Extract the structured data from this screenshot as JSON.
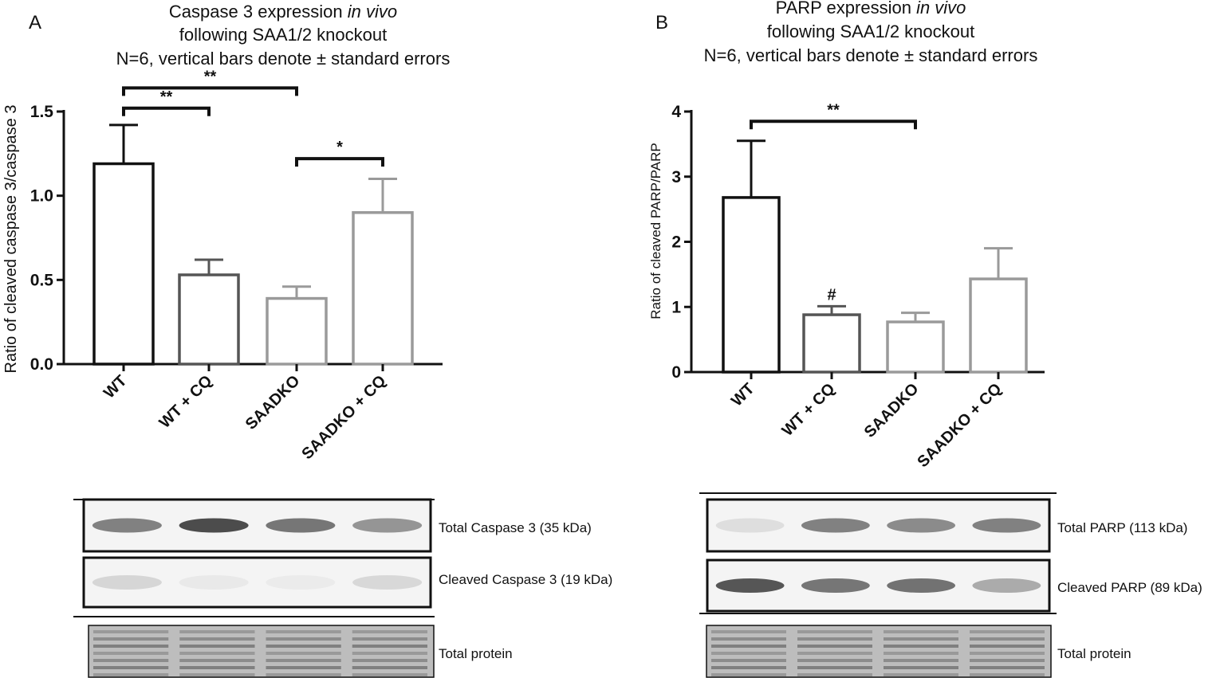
{
  "chart_data": [
    {
      "type": "bar",
      "panel_label": "A",
      "title_lines": [
        {
          "text": "Caspase 3 expression ",
          "italic": "in vivo"
        },
        {
          "text": "following SAA1/2 knockout",
          "italic": ""
        },
        {
          "text": "N=6, vertical bars denote ± standard errors",
          "italic": ""
        }
      ],
      "ylabel": "Ratio of cleaved caspase 3/caspase 3",
      "xlabel": "",
      "ylim": [
        0,
        1.5
      ],
      "yticks": [
        0.0,
        0.5,
        1.0,
        1.5
      ],
      "ytick_labels": [
        "0.0",
        "0.5",
        "1.0",
        "1.5"
      ],
      "categories": [
        "WT",
        "WT + CQ",
        "SAADKO",
        "SAADKO + CQ"
      ],
      "values": [
        1.19,
        0.53,
        0.39,
        0.9
      ],
      "errors": [
        0.23,
        0.09,
        0.07,
        0.2
      ],
      "bar_colors": [
        "#111111",
        "#555555",
        "#9a9a9a",
        "#9a9a9a"
      ],
      "annotations": [
        {
          "from": 0,
          "to": 1,
          "text": "**",
          "level": 1.52
        },
        {
          "from": 0,
          "to": 2,
          "text": "**",
          "level": 1.64
        },
        {
          "from": 2,
          "to": 3,
          "text": "*",
          "level": 1.22
        }
      ],
      "bar_annotations": [],
      "blot_labels": [
        "Total Caspase 3 (35 kDa)",
        "Cleaved Caspase 3 (19 kDa)",
        "Total protein"
      ],
      "blot_intensity": [
        [
          0.55,
          0.8,
          0.6,
          0.45
        ],
        [
          0.14,
          0.05,
          0.04,
          0.13
        ]
      ]
    },
    {
      "type": "bar",
      "panel_label": "B",
      "title_lines": [
        {
          "text": "PARP expression ",
          "italic": "in vivo"
        },
        {
          "text": "following SAA1/2 knockout",
          "italic": ""
        },
        {
          "text": "N=6, vertical bars denote ± standard errors",
          "italic": ""
        }
      ],
      "ylabel": "Ratio of cleaved PARP/PARP",
      "xlabel": "",
      "ylim": [
        0,
        4
      ],
      "yticks": [
        0,
        1,
        2,
        3,
        4
      ],
      "ytick_labels": [
        "0",
        "1",
        "2",
        "3",
        "4"
      ],
      "categories": [
        "WT",
        "WT + CQ",
        "SAADKO",
        "SAADKO + CQ"
      ],
      "values": [
        2.68,
        0.88,
        0.77,
        1.43
      ],
      "errors": [
        0.87,
        0.13,
        0.14,
        0.47
      ],
      "bar_colors": [
        "#111111",
        "#555555",
        "#9a9a9a",
        "#9a9a9a"
      ],
      "annotations": [
        {
          "from": 0,
          "to": 2,
          "text": "**",
          "level": 3.85
        }
      ],
      "bar_annotations": [
        {
          "index": 1,
          "text": "#"
        }
      ],
      "blot_labels": [
        "Total PARP (113 kDa)",
        "Cleaved PARP (89 kDa)",
        "Total protein"
      ],
      "blot_intensity": [
        [
          0.1,
          0.55,
          0.5,
          0.55
        ],
        [
          0.75,
          0.6,
          0.62,
          0.35
        ]
      ]
    }
  ]
}
